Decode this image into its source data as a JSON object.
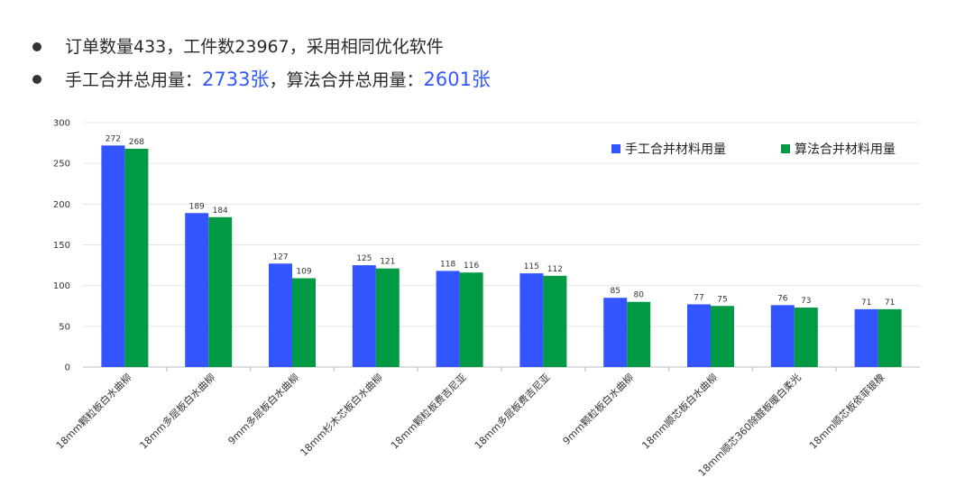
{
  "summary": {
    "line1": "订单数量433，工件数23967，采用相同优化软件",
    "line2_prefix": "手工合并总用量：",
    "line2_value1": "2733张",
    "line2_mid": "，算法合并总用量：",
    "line2_value2": "2601张"
  },
  "colors": {
    "manual": "#3355ff",
    "algo": "#009944",
    "highlight": "#3358ff"
  },
  "chart_data": {
    "type": "bar",
    "categories": [
      "18mm颗粒板白水曲柳",
      "18mm多层板白水曲柳",
      "9mm多层板白水曲柳",
      "18mm杉木芯板白水曲柳",
      "18mm颗粒板费吉尼亚",
      "18mm多层板费吉尼亚",
      "9mm颗粒板白水曲柳",
      "18mm顺芯板白水曲柳",
      "18mm顺芯360除醛板暖白柔光",
      "18mm顺芯板依菲银橡"
    ],
    "series": [
      {
        "name": "手工合并材料用量",
        "values": [
          272,
          189,
          127,
          125,
          118,
          115,
          85,
          77,
          76,
          71
        ]
      },
      {
        "name": "算法合并材料用量",
        "values": [
          268,
          184,
          109,
          121,
          116,
          112,
          80,
          75,
          73,
          71
        ]
      }
    ],
    "ylim": [
      0,
      300
    ],
    "yticks": [
      0,
      50,
      100,
      150,
      200,
      250,
      300
    ],
    "grid": true,
    "legend_position": "top-right"
  }
}
